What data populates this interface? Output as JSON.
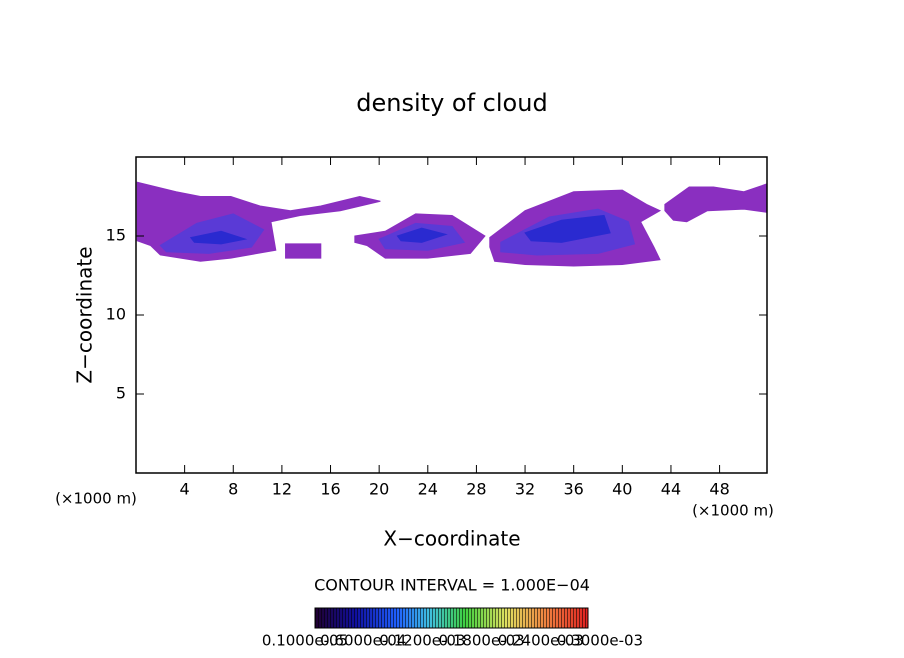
{
  "chart_data": {
    "type": "contour",
    "title": "density of cloud",
    "x_label": "X−coordinate",
    "y_label": "Z−coordinate",
    "x_unit_left": "(×1000 m)",
    "x_unit_right": "(×1000 m)",
    "contour_note": "CONTOUR INTERVAL = 1.000E−04",
    "xlim": [
      0,
      51.9
    ],
    "ylim": [
      0,
      20
    ],
    "xticks": [
      4,
      8,
      12,
      16,
      20,
      24,
      28,
      32,
      36,
      40,
      44,
      48
    ],
    "yticks": [
      5,
      10,
      15
    ],
    "regions": [
      {
        "color": "#8a2fc0",
        "x": [
          0.1,
          3.3,
          5.3,
          7.8,
          10.2,
          12.7,
          15.2,
          18.4,
          20.1,
          16.8,
          13.5,
          11.1,
          11.5,
          7.8,
          5.3,
          2.0,
          1.2,
          0.1
        ],
        "z": [
          18.4,
          17.8,
          17.5,
          17.5,
          16.9,
          16.6,
          16.9,
          17.5,
          17.2,
          16.6,
          16.3,
          15.9,
          14.1,
          13.6,
          13.4,
          13.8,
          14.4,
          14.7
        ]
      },
      {
        "color": "#8a2fc0",
        "x": [
          12.3,
          15.2,
          15.2,
          12.3
        ],
        "z": [
          14.5,
          14.5,
          13.6,
          13.6
        ]
      },
      {
        "color": "#8a2fc0",
        "x": [
          18.0,
          20.5,
          23.0,
          26.0,
          28.7,
          27.5,
          24.0,
          20.5,
          19.0,
          18.0
        ],
        "z": [
          15.0,
          15.3,
          16.4,
          16.3,
          15.0,
          13.9,
          13.6,
          13.6,
          14.4,
          14.6
        ]
      },
      {
        "color": "#8a2fc0",
        "x": [
          29.1,
          32.0,
          36.0,
          40.0,
          42.0,
          43.1,
          41.5,
          42.6,
          43.1,
          40.0,
          36.0,
          32.0,
          29.5,
          29.1
        ],
        "z": [
          14.9,
          16.6,
          17.8,
          17.9,
          17.0,
          16.6,
          15.9,
          14.3,
          13.5,
          13.2,
          13.1,
          13.2,
          13.4,
          14.3
        ]
      },
      {
        "color": "#8a2fc0",
        "x": [
          43.5,
          45.5,
          47.5,
          50.0,
          51.9,
          51.9,
          50.0,
          47.0,
          45.3,
          44.2,
          43.5
        ],
        "z": [
          17.0,
          18.1,
          18.1,
          17.8,
          18.3,
          16.5,
          16.7,
          16.6,
          15.9,
          16.0,
          16.6
        ]
      },
      {
        "color": "#5a3ad6",
        "x": [
          2.0,
          5.0,
          8.0,
          10.5,
          9.5,
          6.0,
          2.5
        ],
        "z": [
          14.4,
          15.8,
          16.4,
          15.4,
          14.3,
          13.9,
          14.0
        ]
      },
      {
        "color": "#5a3ad6",
        "x": [
          20.0,
          23.0,
          26.0,
          27.0,
          24.0,
          20.5
        ],
        "z": [
          14.8,
          15.8,
          15.6,
          14.6,
          14.1,
          14.2
        ]
      },
      {
        "color": "#5a3ad6",
        "x": [
          30.0,
          34.0,
          38.0,
          40.5,
          41.0,
          38.0,
          33.0,
          30.0
        ],
        "z": [
          14.6,
          16.2,
          16.7,
          15.9,
          14.5,
          13.9,
          13.8,
          14.0
        ]
      },
      {
        "color": "#2a2ad0",
        "x": [
          4.5,
          7.0,
          9.0,
          7.0,
          4.8
        ],
        "z": [
          14.9,
          15.3,
          14.8,
          14.5,
          14.6
        ]
      },
      {
        "color": "#2a2ad0",
        "x": [
          21.5,
          23.5,
          25.5,
          23.5,
          21.8
        ],
        "z": [
          15.0,
          15.5,
          15.1,
          14.6,
          14.7
        ]
      },
      {
        "color": "#2a2ad0",
        "x": [
          32.0,
          35.0,
          38.5,
          39.0,
          35.0,
          32.5
        ],
        "z": [
          15.2,
          16.0,
          16.3,
          15.2,
          14.6,
          14.7
        ]
      }
    ],
    "colorbar_ticks": [
      {
        "value": 1e-06,
        "label": "0.1000e-05"
      },
      {
        "value": 6e-05,
        "label": "0.6000e-04"
      },
      {
        "value": 0.00012,
        "label": "0.1200e-03"
      },
      {
        "value": 0.00018,
        "label": "0.1800e-03"
      },
      {
        "value": 0.00024,
        "label": "0.2400e-03"
      },
      {
        "value": 0.0003,
        "label": "0.3000e-03"
      }
    ]
  }
}
